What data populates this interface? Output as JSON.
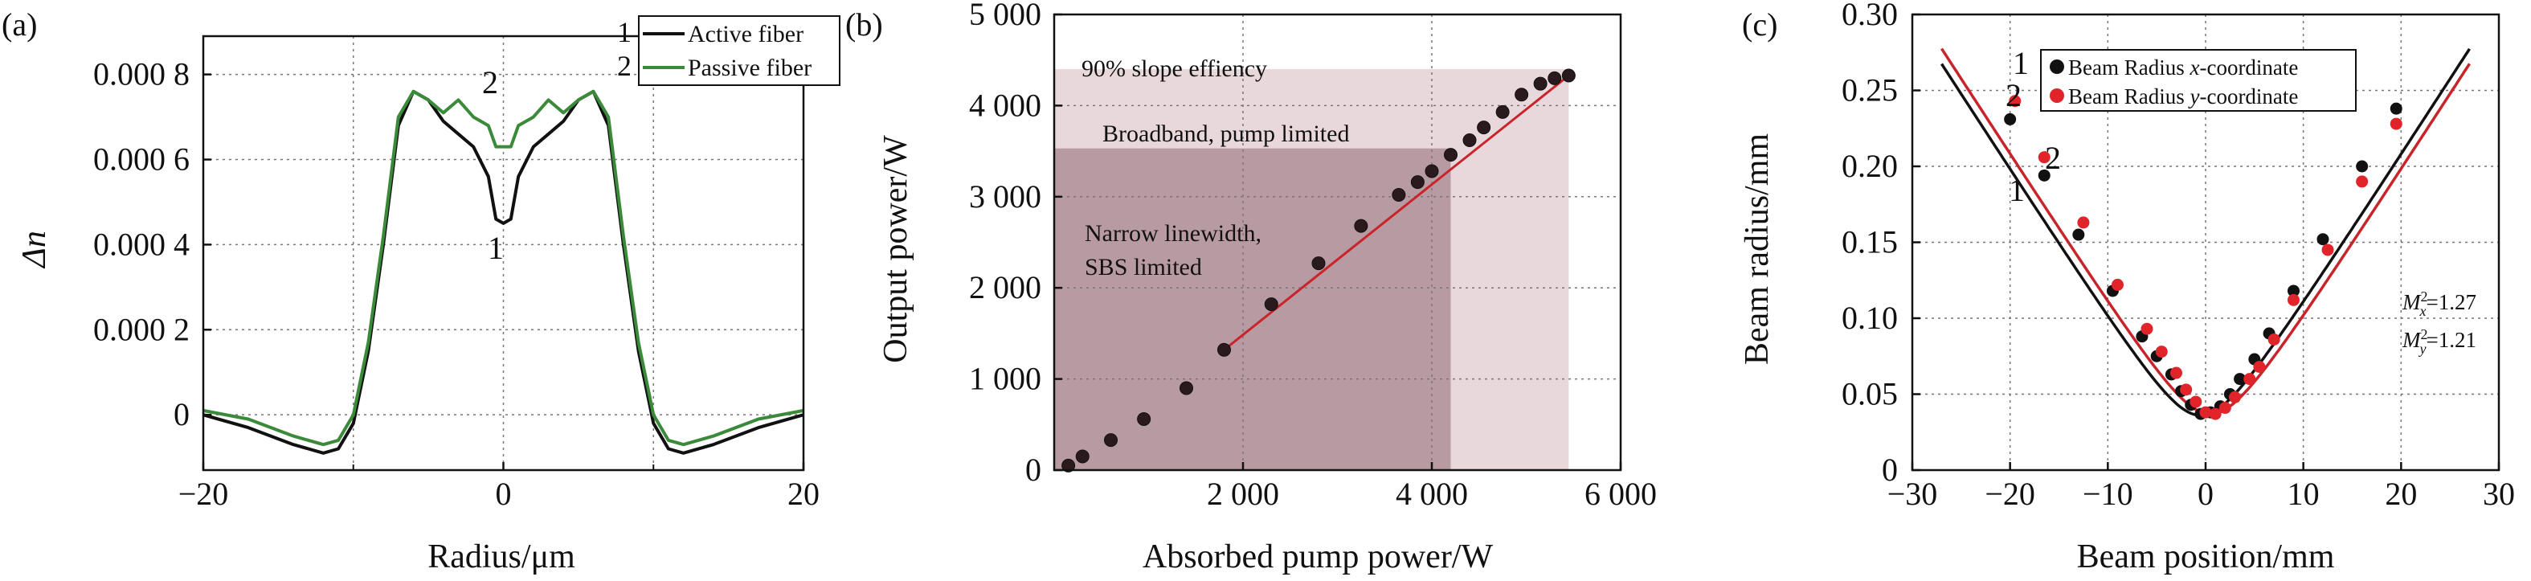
{
  "colors": {
    "black": "#111111",
    "green": "#3a8a3a",
    "red": "#e0242a",
    "dark_fill": "#b89aa2",
    "light_fill": "#e8d8dc",
    "line_red": "#c8242a"
  },
  "panels": [
    {
      "panel_label": "(a)",
      "xlabel": "Radius/μm",
      "ylabel": "Δn",
      "xticks": [
        "−20",
        "0",
        "20"
      ],
      "yticks": [
        "0",
        "0.000 2",
        "0.000 4",
        "0.000 6",
        "0.000 8"
      ],
      "curve_labels": {
        "black": "1",
        "green": "2"
      }
    },
    {
      "panel_label": "(b)",
      "xlabel": "Absorbed pump power/W",
      "ylabel": "Output power/W",
      "xticks": [
        "2 000",
        "4 000",
        "6 000"
      ],
      "yticks": [
        "0",
        "1 000",
        "2 000",
        "3 000",
        "4 000",
        "5 000"
      ],
      "regions": [
        "90% slope effiency",
        "Broadband, pump limited",
        "Narrow linewidth,",
        "SBS limited"
      ]
    },
    {
      "panel_label": "(c)",
      "xlabel": "Beam position/mm",
      "ylabel": "Beam radius/mm",
      "xticks": [
        "−30",
        "−20",
        "−10",
        "0",
        "10",
        "20",
        "30"
      ],
      "yticks": [
        "0",
        "0.05",
        "0.10",
        "0.15",
        "0.20",
        "0.25",
        "0.30"
      ],
      "m2x_label": "M",
      "m2x_sub": "x",
      "m2x_val": "=1.27",
      "m2y_label": "M",
      "m2y_sub": "y",
      "m2y_val": "=1.21",
      "curve_labels": {
        "x": "1",
        "y": "2"
      }
    }
  ],
  "chart_data": [
    {
      "type": "line",
      "title": "",
      "xlabel": "Radius/μm",
      "ylabel": "Δn",
      "xlim": [
        -20,
        20
      ],
      "ylim": [
        -0.00013,
        0.00089
      ],
      "legend": {
        "placement": "top-right",
        "entries": [
          {
            "number": "1",
            "name": "Active fiber"
          },
          {
            "number": "2",
            "name": "Passive fiber"
          }
        ]
      },
      "series": [
        {
          "name": "Active fiber",
          "color": "black",
          "x": [
            -20,
            -17,
            -14,
            -12,
            -11,
            -10,
            -9,
            -8,
            -7,
            -6,
            -5,
            -4,
            -3,
            -2,
            -1,
            -0.5,
            0,
            0.5,
            1,
            2,
            3,
            4,
            5,
            6,
            7,
            8,
            9,
            10,
            11,
            12,
            14,
            17,
            20
          ],
          "y": [
            0,
            -3e-05,
            -7e-05,
            -9e-05,
            -8e-05,
            -2e-05,
            0.00015,
            0.0004,
            0.00068,
            0.00076,
            0.00074,
            0.00069,
            0.00066,
            0.00063,
            0.00056,
            0.00046,
            0.00045,
            0.00046,
            0.00056,
            0.00063,
            0.00066,
            0.00069,
            0.00074,
            0.00076,
            0.00068,
            0.0004,
            0.00015,
            -2e-05,
            -8e-05,
            -9e-05,
            -7e-05,
            -3e-05,
            0
          ]
        },
        {
          "name": "Passive fiber",
          "color": "green",
          "x": [
            -20,
            -17,
            -14,
            -12,
            -11,
            -10,
            -9,
            -8,
            -7,
            -6,
            -5,
            -4,
            -3,
            -2,
            -1,
            -0.5,
            0,
            0.5,
            1,
            2,
            3,
            4,
            5,
            6,
            7,
            8,
            9,
            10,
            11,
            12,
            14,
            17,
            20
          ],
          "y": [
            1e-05,
            -1e-05,
            -5e-05,
            -7e-05,
            -6e-05,
            0.0,
            0.00017,
            0.00042,
            0.0007,
            0.00076,
            0.00074,
            0.00071,
            0.00074,
            0.0007,
            0.00068,
            0.00063,
            0.00063,
            0.00063,
            0.00068,
            0.0007,
            0.00074,
            0.00071,
            0.00074,
            0.00076,
            0.0007,
            0.00042,
            0.00017,
            0.0,
            -6e-05,
            -7e-05,
            -5e-05,
            -1e-05,
            1e-05
          ]
        }
      ],
      "grid": true
    },
    {
      "type": "scatter",
      "title": "",
      "xlabel": "Absorbed pump power/W",
      "ylabel": "Output power/W",
      "xlim": [
        0,
        6000
      ],
      "ylim": [
        0,
        5000
      ],
      "points": {
        "x": [
          150,
          300,
          600,
          950,
          1400,
          1800,
          2300,
          2800,
          3250,
          3650,
          3850,
          4000,
          4200,
          4400,
          4550,
          4750,
          4950,
          5150,
          5300,
          5450
        ],
        "y": [
          50,
          150,
          330,
          560,
          900,
          1320,
          1820,
          2270,
          2680,
          3020,
          3160,
          3280,
          3460,
          3620,
          3760,
          3930,
          4120,
          4240,
          4300,
          4330
        ]
      },
      "fit_line": {
        "x": [
          1800,
          5450
        ],
        "y": [
          1320,
          4330
        ]
      },
      "regions": [
        {
          "label": "90% slope effiency",
          "x": [
            0,
            5450
          ],
          "y": [
            0,
            4400
          ]
        },
        {
          "label": "Broadband, pump limited",
          "x": [
            0,
            5450
          ],
          "y": [
            0,
            4400
          ]
        },
        {
          "label": "Narrow linewidth, SBS limited",
          "x": [
            0,
            4200
          ],
          "y": [
            0,
            3530
          ]
        }
      ],
      "grid": true
    },
    {
      "type": "scatter",
      "title": "",
      "xlabel": "Beam position/mm",
      "ylabel": "Beam radius/mm",
      "xlim": [
        -30,
        30
      ],
      "ylim": [
        0,
        0.3
      ],
      "legend": {
        "placement": "top-right",
        "entries": [
          {
            "number": "1",
            "name_prefix": "Beam Radius ",
            "name_var": "x",
            "name_suffix": "-coordinate",
            "color": "black"
          },
          {
            "number": "2",
            "name_prefix": "Beam Radius ",
            "name_var": "y",
            "name_suffix": "-coordinate",
            "color": "red"
          }
        ]
      },
      "series": [
        {
          "name": "Beam Radius x-coordinate",
          "color": "black",
          "x": [
            -20,
            -16.5,
            -13,
            -9.5,
            -6.5,
            -5,
            -3.5,
            -2.5,
            -1.5,
            -0.5,
            0.5,
            1.5,
            2.5,
            3.5,
            5,
            6.5,
            9,
            12,
            16,
            19.5
          ],
          "y": [
            0.231,
            0.194,
            0.155,
            0.118,
            0.088,
            0.075,
            0.063,
            0.052,
            0.043,
            0.037,
            0.038,
            0.042,
            0.05,
            0.06,
            0.073,
            0.09,
            0.118,
            0.152,
            0.2,
            0.238
          ],
          "fit_w0": 0.036,
          "fit_z0": -0.5,
          "fit_zr": 3.6
        },
        {
          "name": "Beam Radius y-coordinate",
          "color": "red",
          "x": [
            -19.5,
            -16.5,
            -12.5,
            -9,
            -6,
            -4.5,
            -3,
            -2,
            -1,
            0,
            1,
            2,
            3,
            4.5,
            5.5,
            7,
            9,
            12.5,
            16,
            19.5
          ],
          "y": [
            0.243,
            0.206,
            0.163,
            0.122,
            0.093,
            0.078,
            0.064,
            0.053,
            0.045,
            0.038,
            0.037,
            0.041,
            0.048,
            0.06,
            0.068,
            0.086,
            0.112,
            0.145,
            0.19,
            0.228
          ],
          "fit_w0": 0.037,
          "fit_z0": 0.5,
          "fit_zr": 3.7
        }
      ],
      "annotations": [
        "M_x^2=1.27",
        "M_y^2=1.21"
      ],
      "grid": true
    }
  ]
}
